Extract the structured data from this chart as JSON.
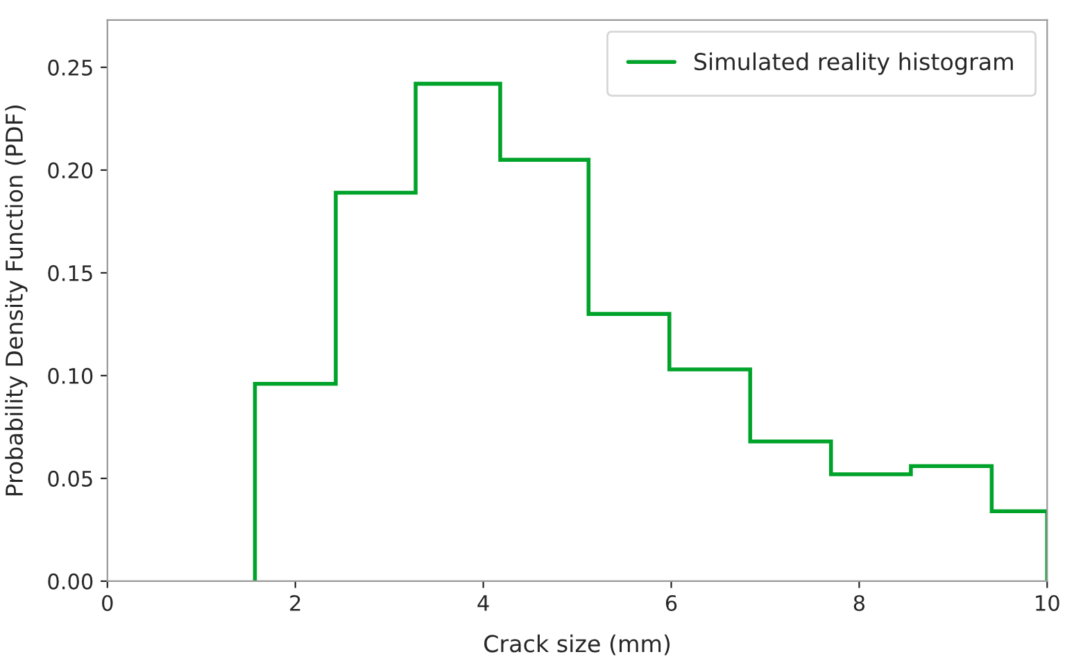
{
  "chart_data": {
    "type": "histogram",
    "xlabel": "Crack size (mm)",
    "ylabel": "Probability Density Function (PDF)",
    "bins": [
      1.57,
      2.43,
      3.28,
      4.18,
      5.12,
      5.98,
      6.84,
      7.7,
      8.55,
      9.41,
      10
    ],
    "series": [
      {
        "name": "Simulated reality histogram",
        "color": "#00a32a",
        "values": [
          0.096,
          0.189,
          0.242,
          0.205,
          0.13,
          0.103,
          0.068,
          0.052,
          0.056,
          0.034
        ]
      }
    ],
    "xlim": [
      0,
      10
    ],
    "ylim": [
      0,
      0.273
    ],
    "xticks": [
      0,
      2,
      4,
      6,
      8,
      10
    ],
    "yticks": [
      {
        "value": 0,
        "label": "0.00"
      },
      {
        "value": 0.05,
        "label": "0.05"
      },
      {
        "value": 0.1,
        "label": "0.10"
      },
      {
        "value": 0.15,
        "label": "0.15"
      },
      {
        "value": 0.2,
        "label": "0.20"
      },
      {
        "value": 0.25,
        "label": "0.25"
      }
    ],
    "legend": "top right",
    "grid": false
  }
}
